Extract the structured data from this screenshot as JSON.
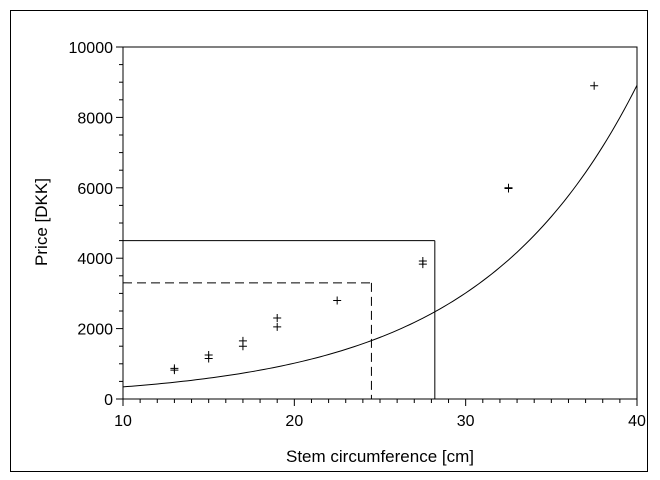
{
  "chart_data": {
    "type": "scatter",
    "xlabel": "Stem circumference [cm]",
    "ylabel": "Price [DKK]",
    "xlim": [
      10,
      40
    ],
    "ylim": [
      0,
      10000
    ],
    "x_ticks": [
      10,
      20,
      30,
      40
    ],
    "y_ticks": [
      0,
      2000,
      4000,
      6000,
      8000,
      10000
    ],
    "x_tick_labels": [
      "10",
      "20",
      "30",
      "40"
    ],
    "y_tick_labels": [
      "0",
      "2000",
      "4000",
      "6000",
      "8000",
      "10000"
    ],
    "grid": false,
    "legend": "none",
    "series": [
      {
        "type": "scatter",
        "marker": "plus",
        "points": [
          {
            "x": 13,
            "y": 820
          },
          {
            "x": 13,
            "y": 870
          },
          {
            "x": 15,
            "y": 1150
          },
          {
            "x": 15,
            "y": 1250
          },
          {
            "x": 17,
            "y": 1500
          },
          {
            "x": 17,
            "y": 1650
          },
          {
            "x": 19,
            "y": 2050
          },
          {
            "x": 19,
            "y": 2300
          },
          {
            "x": 22.5,
            "y": 2800
          },
          {
            "x": 27.5,
            "y": 3830
          },
          {
            "x": 27.5,
            "y": 3920
          },
          {
            "x": 32.5,
            "y": 5980
          },
          {
            "x": 32.5,
            "y": 6000
          },
          {
            "x": 37.5,
            "y": 8900
          }
        ]
      },
      {
        "type": "line",
        "style": "solid",
        "curve": {
          "form": "exponential",
          "a": 116.2,
          "b": 0.1085
        },
        "x_range": [
          10,
          40
        ]
      }
    ],
    "reference_lines": [
      {
        "style": "solid",
        "x": 28.2,
        "y": 4500
      },
      {
        "style": "dashed",
        "x": 24.5,
        "y": 3300
      }
    ]
  }
}
